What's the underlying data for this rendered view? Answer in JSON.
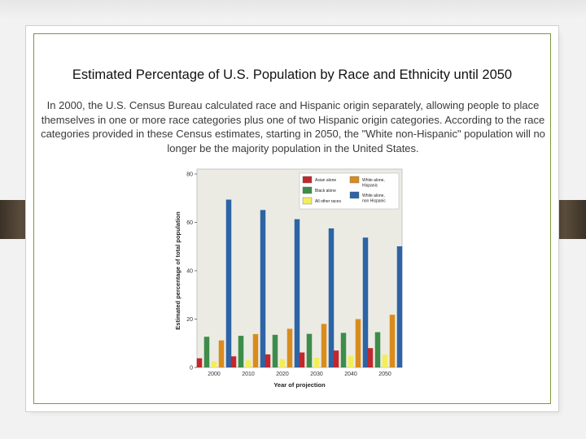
{
  "slide": {
    "title": "Estimated Percentage of U.S. Population by Race and Ethnicity until 2050",
    "body": "In 2000, the U.S. Census Bureau calculated race and Hispanic origin separately, allowing people to place themselves in one or more race categories plus one of two Hispanic origin categories. According to the race categories provided in these Census estimates, starting in 2050, the \"White non-Hispanic\" population will no longer be the majority population in the United States."
  },
  "chart_data": {
    "type": "bar",
    "title": "",
    "xlabel": "Year of projection",
    "ylabel": "Estimated percentage of total population",
    "ylim": [
      0,
      80
    ],
    "yticks": [
      "0",
      "20",
      "40",
      "60",
      "80"
    ],
    "categories": [
      "2000",
      "2010",
      "2020",
      "2030",
      "2040",
      "2050"
    ],
    "grid": false,
    "legend_position": "top-right",
    "series": [
      {
        "name": "Asian alone",
        "color": "#c0282d",
        "values": [
          3.8,
          4.6,
          5.4,
          6.2,
          7.0,
          8.0
        ]
      },
      {
        "name": "Black alone",
        "color": "#3d8c4a",
        "values": [
          12.7,
          13.1,
          13.5,
          13.9,
          14.3,
          14.6
        ]
      },
      {
        "name": "All other races",
        "color": "#f2ee5a",
        "values": [
          2.5,
          3.0,
          3.5,
          4.0,
          4.8,
          5.3
        ]
      },
      {
        "name": "White alone, Hispanic",
        "color": "#d98c1e",
        "values": [
          11.2,
          13.8,
          16.0,
          18.0,
          20.0,
          21.8
        ]
      },
      {
        "name": "White alone, non Hispanic",
        "color": "#2c64a6",
        "values": [
          69.4,
          65.1,
          61.3,
          57.5,
          53.7,
          50.1
        ]
      }
    ],
    "legend_lines": [
      [
        "Asian alone"
      ],
      [
        "Black alone"
      ],
      [
        "All other races"
      ],
      [
        "White alone,",
        "Hispanic"
      ],
      [
        "White alone,",
        "non Hispanic"
      ]
    ],
    "colors": {
      "background": "#ecebe3",
      "frame": "#b9b9b9"
    }
  }
}
